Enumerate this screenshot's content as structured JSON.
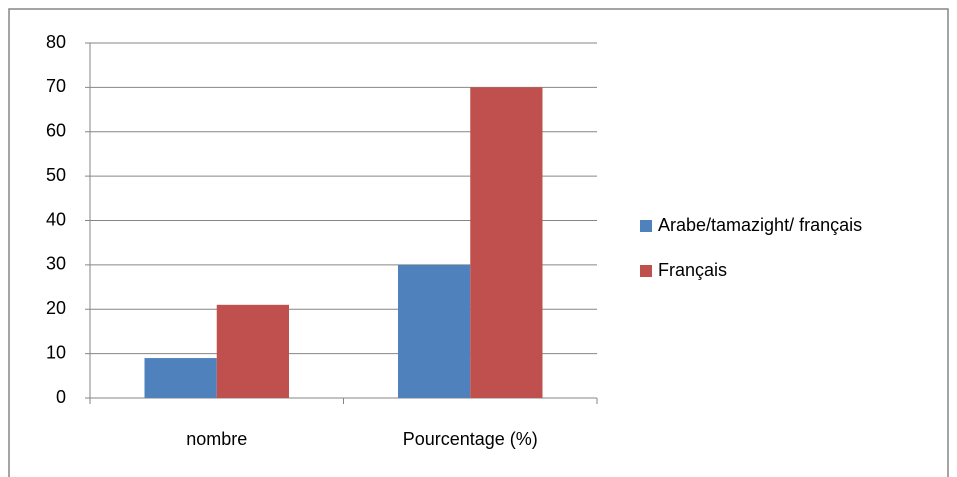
{
  "chart_data": {
    "type": "bar",
    "categories": [
      "nombre",
      "Pourcentage (%)"
    ],
    "series": [
      {
        "name": "Arabe/tamazight/ français",
        "color": "#4f81bd",
        "values": [
          9,
          30
        ]
      },
      {
        "name": "Français",
        "color": "#c0504d",
        "values": [
          21,
          70
        ]
      }
    ],
    "ylim": [
      0,
      80
    ],
    "yticks": [
      0,
      10,
      20,
      30,
      40,
      50,
      60,
      70,
      80
    ],
    "grid": true,
    "legend": "right"
  }
}
